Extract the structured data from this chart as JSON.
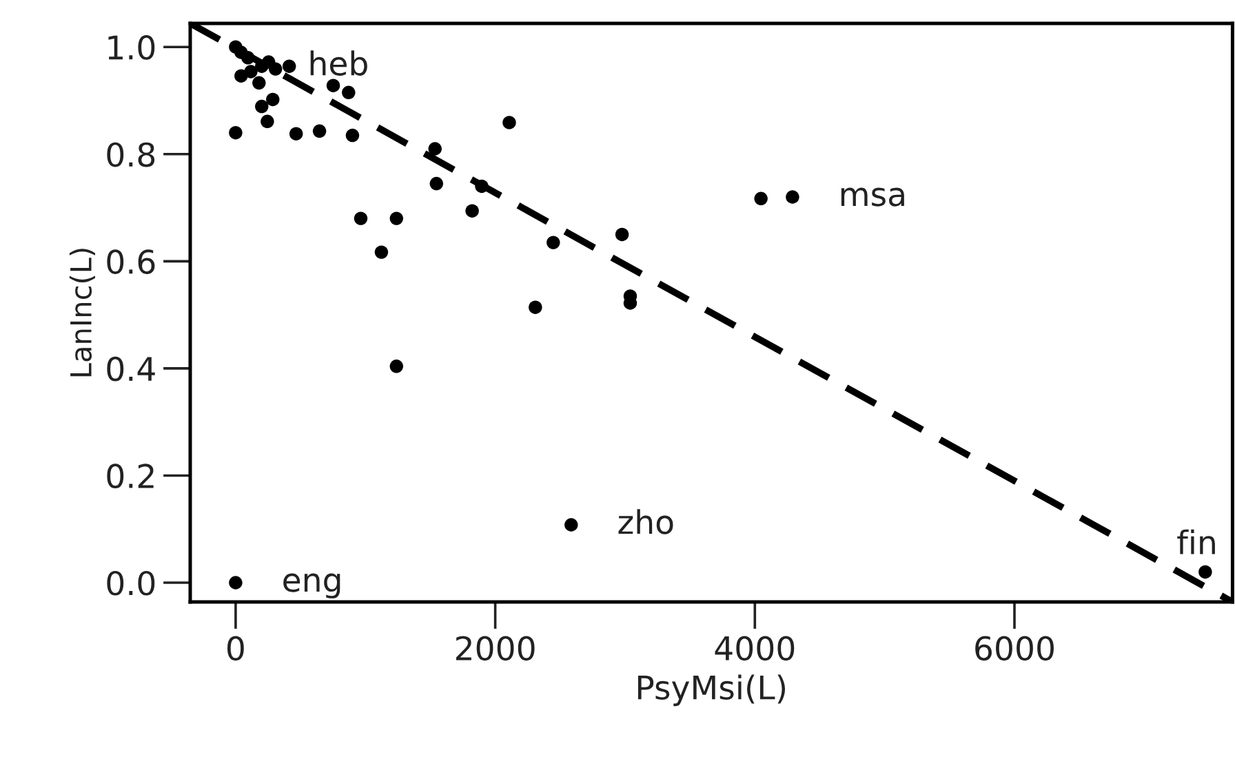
{
  "chart_data": {
    "type": "scatter",
    "xlabel": "PsyMsi(L)",
    "ylabel": "LanInc(L)",
    "xlim": [
      -350,
      7680
    ],
    "ylim": [
      -0.036,
      1.044
    ],
    "xticks": [
      0,
      2000,
      4000,
      6000
    ],
    "yticks": [
      {
        "value": 0,
        "label": "0.0"
      },
      0.2,
      0.4,
      0.6,
      0.8,
      {
        "value": 1,
        "label": "1.0"
      }
    ],
    "grid": false,
    "legend": false,
    "marker": "circle",
    "series": [
      {
        "color": "#000000",
        "x": [
          0,
          2585,
          7470,
          4047,
          4290,
          0,
          466,
          646,
          900,
          244,
          2108,
          752,
          870,
          286,
          201,
          1536,
          1547,
          1896,
          1822,
          964,
          1239,
          1123,
          2447,
          2977,
          3040,
          3040,
          2309,
          1239,
          0,
          42,
          95,
          201,
          307,
          413,
          42,
          117,
          254,
          180
        ],
        "values": [
          0.0,
          0.108,
          0.02,
          0.717,
          0.72,
          0.84,
          0.838,
          0.843,
          0.835,
          0.861,
          0.859,
          0.928,
          0.915,
          0.902,
          0.889,
          0.81,
          0.745,
          0.74,
          0.694,
          0.68,
          0.68,
          0.617,
          0.635,
          0.65,
          0.535,
          0.522,
          0.514,
          0.404,
          1.0,
          0.99,
          0.98,
          0.964,
          0.959,
          0.964,
          0.946,
          0.954,
          0.972,
          0.933
        ]
      },
      {
        "type": "line",
        "color": "#000000",
        "line_style": "dashed",
        "marker": "none",
        "x": [
          -350,
          7680
        ],
        "values": [
          1.044,
          -0.036
        ]
      }
    ],
    "annotations": [
      {
        "text": "eng",
        "x": 0,
        "y": 0.0
      },
      {
        "text": "zho",
        "x": 2585,
        "y": 0.108
      },
      {
        "text": "fin",
        "x": 7470,
        "y": 0.02
      },
      {
        "text": "msa",
        "x": 4290,
        "y": 0.72
      },
      {
        "text": "heb",
        "x": 201,
        "y": 0.964
      }
    ]
  }
}
